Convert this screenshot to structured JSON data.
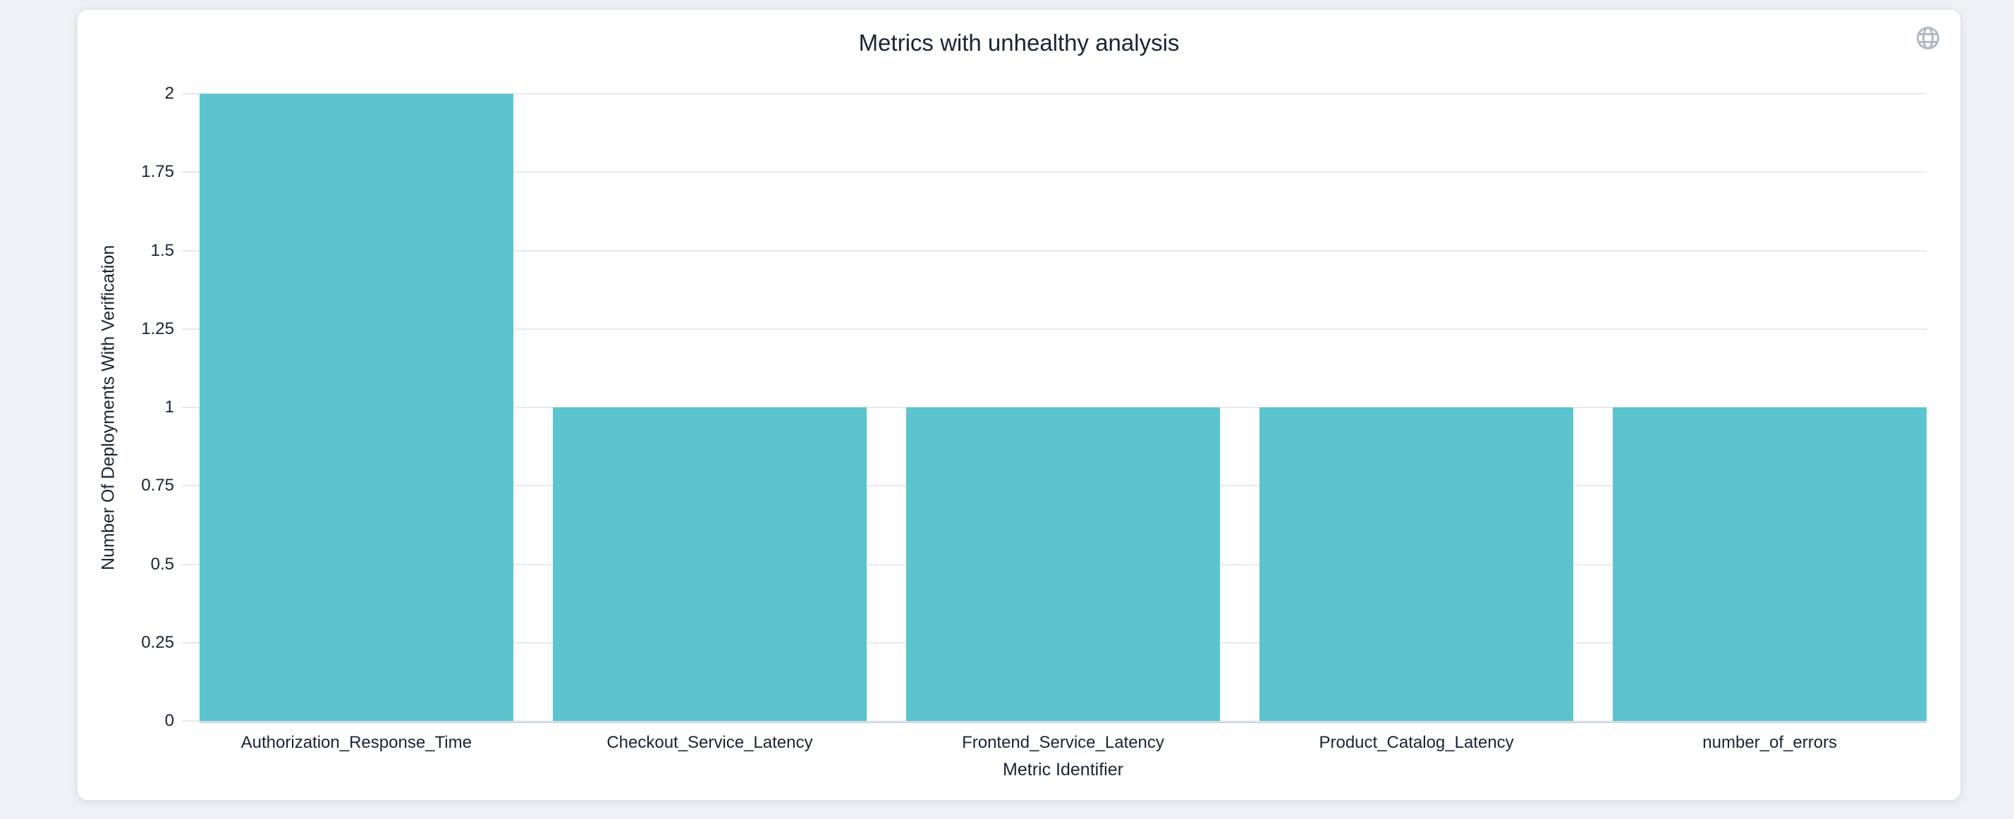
{
  "page": {
    "background_color": "#eff1f4",
    "card_color": "#ffffff"
  },
  "icons": {
    "top_right": "globe-icon",
    "color": "#b2b9c4"
  },
  "chart_data": {
    "type": "bar",
    "title": "Metrics with unhealthy analysis",
    "xlabel": "Metric Identifier",
    "ylabel": "Number Of Deployments With Verification",
    "categories": [
      "Authorization_Response_Time",
      "Checkout_Service_Latency",
      "Frontend_Service_Latency",
      "Product_Catalog_Latency",
      "number_of_errors"
    ],
    "values": [
      2,
      1,
      1,
      1,
      1
    ],
    "ylim": [
      0,
      2
    ],
    "yticks": [
      0,
      0.25,
      0.5,
      0.75,
      1,
      1.25,
      1.5,
      1.75,
      2
    ],
    "ytick_labels": [
      "0",
      "0.25",
      "0.5",
      "0.75",
      "1",
      "1.25",
      "1.5",
      "1.75",
      "2"
    ],
    "grid": true,
    "legend": false,
    "bar_color": "#5bc4ce",
    "grid_color": "#e9eaee",
    "axis_line_color": "#ccd3e0",
    "text_color": "#1a2433"
  }
}
